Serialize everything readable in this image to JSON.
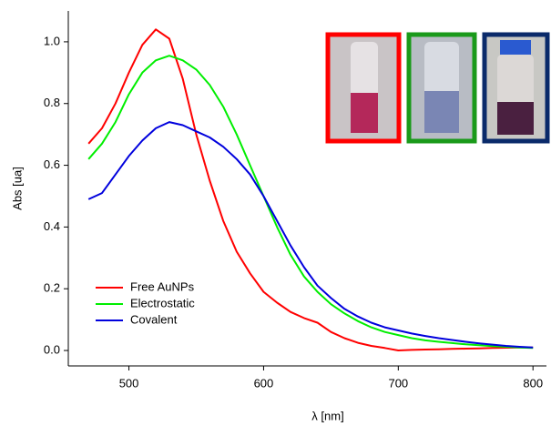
{
  "chart_data": {
    "type": "line",
    "x_label": "λ  [nm]",
    "y_label": "Abs  [ua]",
    "x": [
      470,
      480,
      490,
      500,
      510,
      520,
      530,
      540,
      550,
      560,
      570,
      580,
      590,
      600,
      610,
      620,
      630,
      640,
      650,
      660,
      670,
      680,
      690,
      700,
      710,
      720,
      730,
      740,
      750,
      760,
      770,
      780,
      790,
      800
    ],
    "series": [
      {
        "name": "Free AuNPs",
        "color": "#ff0000",
        "values": [
          0.67,
          0.72,
          0.8,
          0.9,
          0.99,
          1.04,
          1.01,
          0.88,
          0.7,
          0.55,
          0.42,
          0.32,
          0.25,
          0.19,
          0.155,
          0.125,
          0.105,
          0.09,
          0.06,
          0.04,
          0.025,
          0.015,
          0.008,
          0.0,
          0.002,
          0.003,
          0.004,
          0.005,
          0.006,
          0.007,
          0.008,
          0.009,
          0.01,
          0.01
        ]
      },
      {
        "name": "Electrostatic",
        "color": "#00ee00",
        "values": [
          0.62,
          0.67,
          0.74,
          0.83,
          0.9,
          0.94,
          0.955,
          0.94,
          0.91,
          0.86,
          0.79,
          0.7,
          0.6,
          0.5,
          0.4,
          0.31,
          0.24,
          0.19,
          0.15,
          0.12,
          0.095,
          0.075,
          0.06,
          0.05,
          0.04,
          0.033,
          0.028,
          0.024,
          0.02,
          0.017,
          0.014,
          0.012,
          0.01,
          0.008
        ]
      },
      {
        "name": "Covalent",
        "color": "#0000dd",
        "values": [
          0.49,
          0.51,
          0.57,
          0.63,
          0.68,
          0.72,
          0.74,
          0.73,
          0.71,
          0.69,
          0.66,
          0.62,
          0.57,
          0.5,
          0.42,
          0.34,
          0.27,
          0.21,
          0.17,
          0.135,
          0.11,
          0.09,
          0.075,
          0.065,
          0.055,
          0.047,
          0.04,
          0.034,
          0.028,
          0.023,
          0.019,
          0.015,
          0.012,
          0.01
        ]
      }
    ],
    "xlim": [
      455,
      810
    ],
    "ylim": [
      -0.05,
      1.1
    ],
    "xticks": [
      500,
      600,
      700,
      800
    ],
    "yticks": [
      {
        "value": 0,
        "label": "0.0"
      },
      0.2,
      0.4,
      0.6,
      0.8,
      {
        "value": 1,
        "label": "1.0"
      }
    ],
    "legend": "lower-left",
    "grid": false
  }
}
